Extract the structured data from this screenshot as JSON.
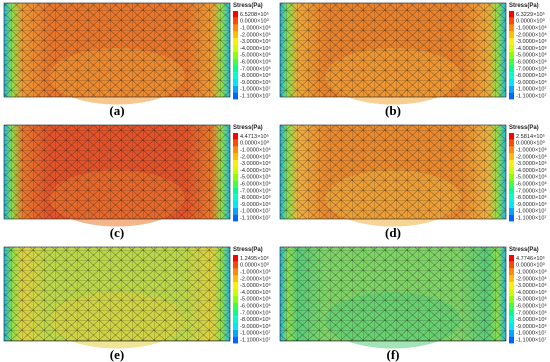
{
  "panels": [
    {
      "label": "(a)",
      "legend": {
        "title": "Stress(Pa)",
        "entries": [
          "6.5208×10⁵",
          "0.0000×10⁰",
          "-1.0000×10⁶",
          "-2.0000×10⁶",
          "-3.0000×10⁶",
          "-4.0000×10⁶",
          "-5.0000×10⁶",
          "-6.0000×10⁶",
          "-7.0000×10⁶",
          "-8.0000×10⁶",
          "-9.0000×10⁶",
          "-1.0000×10⁷",
          "-1.1000×10⁷"
        ]
      }
    },
    {
      "label": "(b)",
      "legend": {
        "title": "Stress(Pa)",
        "entries": [
          "6.3229×10⁵",
          "0.0000×10⁰",
          "-1.0000×10⁶",
          "-2.0000×10⁶",
          "-3.0000×10⁶",
          "-4.0000×10⁶",
          "-5.0000×10⁶",
          "-6.0000×10⁶",
          "-7.0000×10⁶",
          "-8.0000×10⁶",
          "-9.0000×10⁶",
          "-1.0000×10⁷",
          "-1.1000×10⁷"
        ]
      }
    },
    {
      "label": "(c)",
      "legend": {
        "title": "Stress(Pa)",
        "entries": [
          "4.4713×10⁵",
          "0.0000×10⁰",
          "-1.0000×10⁶",
          "-2.0000×10⁶",
          "-3.0000×10⁶",
          "-4.0000×10⁶",
          "-5.0000×10⁶",
          "-6.0000×10⁶",
          "-7.0000×10⁶",
          "-8.0000×10⁶",
          "-9.0000×10⁶",
          "-1.0000×10⁷",
          "-1.1000×10⁷"
        ]
      }
    },
    {
      "label": "(d)",
      "legend": {
        "title": "Stress(Pa)",
        "entries": [
          "2.5814×10⁵",
          "0.0000×10⁰",
          "-1.0000×10⁶",
          "-2.0000×10⁶",
          "-3.0000×10⁶",
          "-4.0000×10⁶",
          "-5.0000×10⁶",
          "-6.0000×10⁶",
          "-7.0000×10⁶",
          "-8.0000×10⁶",
          "-9.0000×10⁶",
          "-1.0000×10⁷",
          "-1.1000×10⁷"
        ]
      }
    },
    {
      "label": "(e)",
      "legend": {
        "title": "Stress(Pa)",
        "entries": [
          "1.2495×10⁶",
          "0.0000×10⁰",
          "-1.0000×10⁶",
          "-2.0000×10⁶",
          "-3.0000×10⁶",
          "-4.0000×10⁶",
          "-5.0000×10⁶",
          "-6.0000×10⁶",
          "-7.0000×10⁶",
          "-8.0000×10⁶",
          "-9.0000×10⁶",
          "-1.0000×10⁷",
          "-1.1000×10⁷"
        ]
      }
    },
    {
      "label": "(f)",
      "legend": {
        "title": "Stress(Pa)",
        "entries": [
          "4.7746×10⁵",
          "0.0000×10⁰",
          "-1.0000×10⁶",
          "-2.0000×10⁶",
          "-3.0000×10⁶",
          "-4.0000×10⁶",
          "-5.0000×10⁶",
          "-6.0000×10⁶",
          "-7.0000×10⁶",
          "-8.0000×10⁶",
          "-9.0000×10⁶",
          "-1.0000×10⁷",
          "-1.1000×10⁷"
        ]
      }
    }
  ]
}
